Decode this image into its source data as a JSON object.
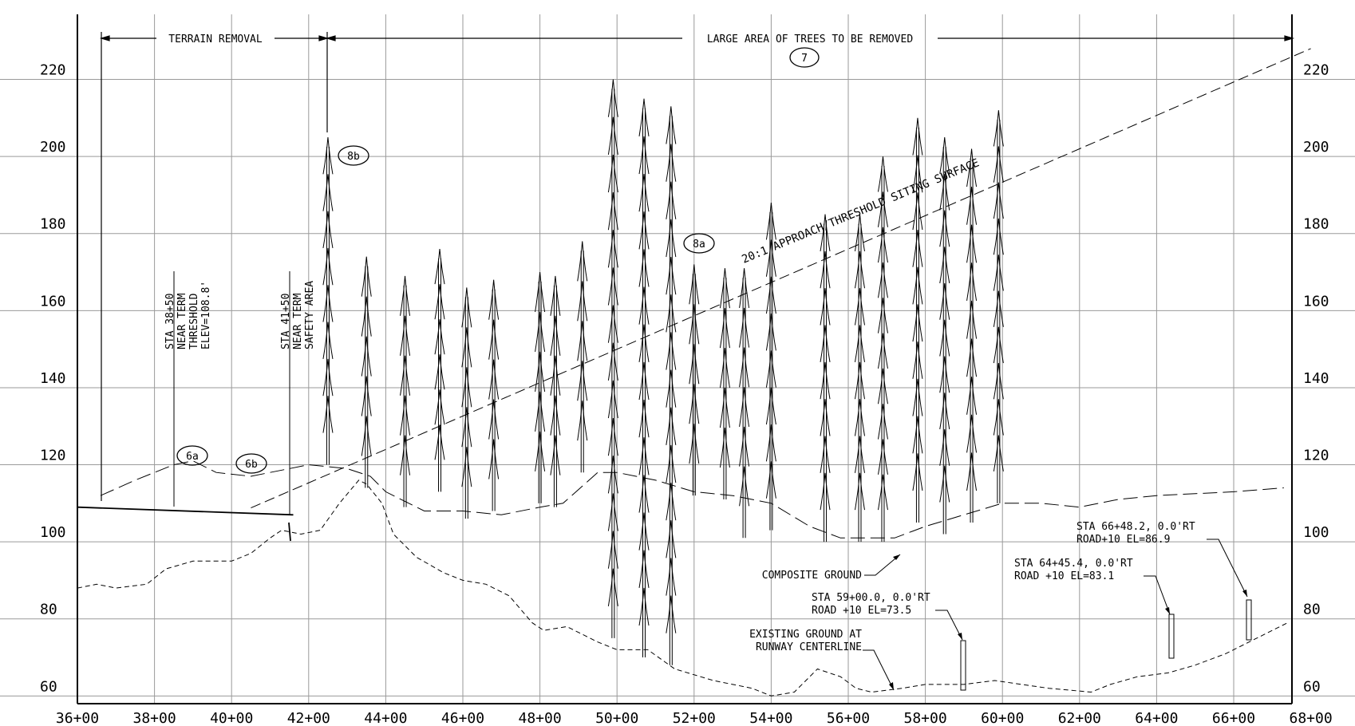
{
  "stations": [
    "36+00",
    "38+00",
    "40+00",
    "42+00",
    "44+00",
    "46+00",
    "48+00",
    "50+00",
    "52+00",
    "54+00",
    "56+00",
    "58+00",
    "60+00",
    "62+00",
    "64+00",
    "66+00",
    "68+00"
  ],
  "elevations": [
    "220",
    "200",
    "180",
    "160",
    "140",
    "120",
    "100",
    "80",
    "60"
  ],
  "dimension_labels": {
    "terrain_removal": "TERRAIN REMOVAL",
    "trees_removed": "LARGE AREA OF TREES TO BE REMOVED"
  },
  "callouts": {
    "c7": "7",
    "c8a": "8a",
    "c8b": "8b",
    "c6a": "6a",
    "c6b": "6b"
  },
  "station_notes": {
    "sta_3850": [
      "STA 38+50",
      "NEAR TERM",
      "THRESHOLD",
      "ELEV=108.8'"
    ],
    "sta_4150": [
      "STA 41+50",
      "NEAR TERM",
      "SAFETY AREA"
    ]
  },
  "siting_surface_label": "20:1 APPROACH/THRESHOLD SITING SURFACE",
  "composite_ground_label": "COMPOSITE GROUND",
  "existing_ground_label": [
    "EXISTING GROUND AT",
    "RUNWAY CENTERLINE"
  ],
  "road_notes": {
    "sta_5900": [
      "STA 59+00.0, 0.0'RT",
      "ROAD +10 EL=73.5"
    ],
    "sta_6445": [
      "STA 64+45.4, 0.0'RT",
      "ROAD +10 EL=83.1"
    ],
    "sta_6648": [
      "STA 66+48.2, 0.0'RT",
      "ROAD+10 EL=86.9"
    ]
  },
  "trees": [
    {
      "station": "42+50",
      "top": 205,
      "base": 120
    },
    {
      "station": "43+50",
      "top": 174,
      "base": 114
    },
    {
      "station": "44+50",
      "top": 169,
      "base": 109
    },
    {
      "station": "45+40",
      "top": 176,
      "base": 113
    },
    {
      "station": "46+10",
      "top": 166,
      "base": 106
    },
    {
      "station": "46+80",
      "top": 168,
      "base": 108
    },
    {
      "station": "48+00",
      "top": 170,
      "base": 110
    },
    {
      "station": "48+40",
      "top": 169,
      "base": 109
    },
    {
      "station": "49+10",
      "top": 178,
      "base": 118
    },
    {
      "station": "49+90",
      "top": 220,
      "base": 75
    },
    {
      "station": "50+70",
      "top": 215,
      "base": 70
    },
    {
      "station": "51+40",
      "top": 213,
      "base": 68
    },
    {
      "station": "52+00",
      "top": 172,
      "base": 112
    },
    {
      "station": "52+80",
      "top": 171,
      "base": 111
    },
    {
      "station": "53+30",
      "top": 171,
      "base": 101
    },
    {
      "station": "54+00",
      "top": 188,
      "base": 103
    },
    {
      "station": "55+40",
      "top": 185,
      "base": 100
    },
    {
      "station": "56+30",
      "top": 185,
      "base": 100
    },
    {
      "station": "56+90",
      "top": 200,
      "base": 100
    },
    {
      "station": "57+80",
      "top": 210,
      "base": 105
    },
    {
      "station": "58+50",
      "top": 205,
      "base": 102
    },
    {
      "station": "59+20",
      "top": 202,
      "base": 105
    },
    {
      "station": "59+90",
      "top": 212,
      "base": 110
    }
  ],
  "composite_ground": [
    [
      36.6,
      112
    ],
    [
      37.5,
      116
    ],
    [
      38.5,
      120
    ],
    [
      39,
      121
    ],
    [
      39.6,
      118
    ],
    [
      40.5,
      117
    ],
    [
      41.5,
      119
    ],
    [
      42,
      120
    ],
    [
      43,
      119
    ],
    [
      43.6,
      117
    ],
    [
      44,
      113
    ],
    [
      45,
      108
    ],
    [
      46,
      108
    ],
    [
      47,
      107
    ],
    [
      48,
      109
    ],
    [
      48.6,
      110
    ],
    [
      49.5,
      118
    ],
    [
      50,
      118
    ],
    [
      51,
      116
    ],
    [
      52,
      113
    ],
    [
      53,
      112
    ],
    [
      54,
      110
    ],
    [
      55,
      104
    ],
    [
      55.8,
      101
    ],
    [
      56.5,
      101
    ],
    [
      57.2,
      101
    ],
    [
      58,
      104
    ],
    [
      59,
      107
    ],
    [
      60,
      110
    ],
    [
      61,
      110
    ],
    [
      62,
      109
    ],
    [
      63,
      111
    ],
    [
      64,
      112
    ],
    [
      66,
      113
    ],
    [
      67.3,
      114
    ]
  ],
  "existing_ground": [
    [
      36,
      88
    ],
    [
      36.5,
      89
    ],
    [
      37,
      88
    ],
    [
      37.8,
      89
    ],
    [
      38.3,
      93
    ],
    [
      39,
      95
    ],
    [
      40,
      95
    ],
    [
      40.5,
      97
    ],
    [
      41,
      101
    ],
    [
      41.3,
      103
    ],
    [
      41.8,
      102
    ],
    [
      42.3,
      103
    ],
    [
      42.8,
      110
    ],
    [
      43.3,
      116
    ],
    [
      43.5,
      115
    ],
    [
      43.9,
      110
    ],
    [
      44.2,
      102
    ],
    [
      44.8,
      96
    ],
    [
      45.5,
      92
    ],
    [
      46,
      90
    ],
    [
      46.6,
      89
    ],
    [
      47.2,
      86
    ],
    [
      47.8,
      79
    ],
    [
      48.1,
      77
    ],
    [
      48.7,
      78
    ],
    [
      49.5,
      74
    ],
    [
      50,
      72
    ],
    [
      50.8,
      72
    ],
    [
      51.5,
      67
    ],
    [
      52.5,
      64
    ],
    [
      53.5,
      62
    ],
    [
      54,
      60
    ],
    [
      54.6,
      61
    ],
    [
      55.2,
      67
    ],
    [
      55.8,
      65
    ],
    [
      56.2,
      62
    ],
    [
      56.6,
      61
    ],
    [
      57.4,
      62
    ],
    [
      58,
      63
    ],
    [
      59,
      63
    ],
    [
      59.8,
      64
    ],
    [
      60.5,
      63
    ],
    [
      61.2,
      62
    ],
    [
      62.3,
      61
    ],
    [
      62.8,
      63
    ],
    [
      63.5,
      65
    ],
    [
      64.3,
      66
    ],
    [
      65,
      68
    ],
    [
      65.8,
      71
    ],
    [
      66.4,
      74
    ],
    [
      67,
      77
    ],
    [
      67.4,
      79
    ]
  ],
  "runway_profile": [
    [
      36,
      109
    ],
    [
      41.6,
      107
    ]
  ],
  "siting_surface": [
    [
      40.5,
      108.8
    ],
    [
      68,
      228
    ]
  ]
}
